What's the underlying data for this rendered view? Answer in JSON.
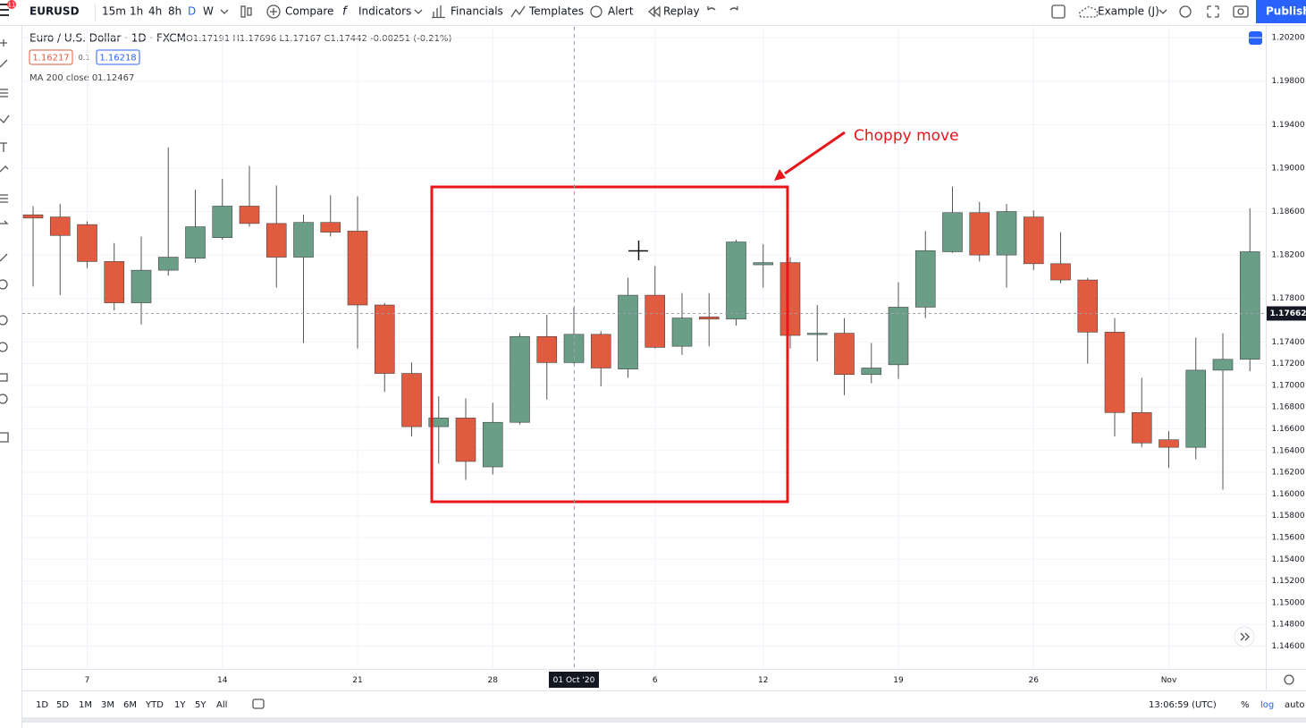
{
  "toolbar": {
    "symbol": "EURUSD",
    "badge": "11",
    "intervals": [
      "15m",
      "1h",
      "4h",
      "8h",
      "D",
      "W"
    ],
    "buttons": [
      "Compare",
      "Indicators",
      "Financials",
      "Templates",
      "Alert",
      "Replay"
    ],
    "layout": "Example (J)",
    "publish": "Publish"
  },
  "legend": {
    "title": "Euro / U.S. Dollar · 1D · FXCM",
    "ohlc": "O1.17191 H1.17696 L1.17167 C1.17442 -0.00251 (-0.21%)",
    "bid": "1.16217",
    "spread": "0.1",
    "ask": "1.16218",
    "indicator": "MA 200 close 0",
    "indicator_value": "1.12467"
  },
  "chart_data": {
    "type": "candlestick",
    "categories": [
      null,
      null,
      "7",
      null,
      null,
      null,
      null,
      "14",
      null,
      null,
      null,
      null,
      "21",
      null,
      null,
      null,
      null,
      "28",
      null,
      null,
      "01 Oct '20",
      null,
      null,
      "6",
      null,
      null,
      null,
      "12",
      null,
      null,
      null,
      null,
      "19",
      null,
      null,
      null,
      null,
      "26",
      null,
      null,
      null,
      null,
      "Nov",
      null,
      null,
      null
    ],
    "open": [
      1.1857,
      1.1855,
      1.1848,
      1.1814,
      1.1776,
      1.1806,
      1.1817,
      1.1836,
      1.1865,
      1.1849,
      1.1818,
      1.185,
      1.1842,
      1.1774,
      1.1711,
      1.1662,
      1.167,
      1.1625,
      1.1666,
      1.1745,
      1.1721,
      1.1747,
      1.1715,
      1.1783,
      1.1736,
      1.1763,
      1.1761,
      1.1811,
      1.1813,
      1.1747,
      1.1748,
      1.171,
      1.1719,
      1.1772,
      1.1823,
      1.1859,
      1.182,
      1.1855,
      1.1812,
      1.1797,
      1.1749,
      1.1675,
      1.165,
      1.1643,
      1.1714,
      1.1724
    ],
    "high": [
      1.1865,
      1.1867,
      1.1851,
      1.1831,
      1.1837,
      1.1919,
      1.188,
      1.189,
      1.1902,
      1.1884,
      1.1857,
      1.1875,
      1.1874,
      1.1776,
      1.1721,
      1.169,
      1.1688,
      1.1684,
      1.1748,
      1.1765,
      1.1772,
      1.175,
      1.1799,
      1.181,
      1.1785,
      1.1785,
      1.1834,
      1.183,
      1.1818,
      1.1774,
      1.1762,
      1.1739,
      1.1795,
      1.1842,
      1.1883,
      1.1869,
      1.1867,
      1.1861,
      1.1841,
      1.1799,
      1.1762,
      1.1707,
      1.1658,
      1.1744,
      1.1748,
      1.1863
    ],
    "low": [
      1.1791,
      1.1783,
      1.1808,
      1.1769,
      1.1756,
      1.1801,
      1.1813,
      1.1834,
      1.1846,
      1.179,
      1.1739,
      1.1837,
      1.1734,
      1.1694,
      1.1653,
      1.1628,
      1.1613,
      1.1618,
      1.1664,
      1.1687,
      1.172,
      1.1699,
      1.1707,
      1.1734,
      1.1728,
      1.1736,
      1.1755,
      1.179,
      1.1734,
      1.1722,
      1.1691,
      1.1702,
      1.1706,
      1.1762,
      1.1822,
      1.1814,
      1.179,
      1.1806,
      1.1794,
      1.172,
      1.1653,
      1.1643,
      1.1624,
      1.1632,
      1.1604,
      1.1713
    ],
    "close": [
      1.1854,
      1.1838,
      1.1814,
      1.1776,
      1.1806,
      1.1818,
      1.1846,
      1.1865,
      1.1849,
      1.1818,
      1.185,
      1.1841,
      1.1774,
      1.1711,
      1.1662,
      1.167,
      1.163,
      1.1666,
      1.1745,
      1.1721,
      1.1747,
      1.1716,
      1.1783,
      1.1735,
      1.1762,
      1.1761,
      1.1832,
      1.1813,
      1.1746,
      1.1748,
      1.171,
      1.1716,
      1.1772,
      1.1824,
      1.1859,
      1.182,
      1.186,
      1.1812,
      1.1797,
      1.1749,
      1.1675,
      1.1647,
      1.1643,
      1.1714,
      1.1724,
      1.1823
    ],
    "up_color": "#6a9e87",
    "down_color": "#e05b3f",
    "ylim": [
      1.1439,
      1.203
    ],
    "yticks": [
      {
        "value": 1.202,
        "label": "1.20200"
      },
      {
        "value": 1.198,
        "label": "1.19800"
      },
      {
        "value": 1.194,
        "label": "1.19400"
      },
      {
        "value": 1.19,
        "label": "1.19000"
      },
      {
        "value": 1.186,
        "label": "1.18600"
      },
      {
        "value": 1.182,
        "label": "1.18200"
      },
      {
        "value": 1.178,
        "label": "1.17800"
      },
      {
        "value": 1.174,
        "label": "1.17400"
      },
      {
        "value": 1.172,
        "label": "1.17200"
      },
      {
        "value": 1.17,
        "label": "1.17000"
      },
      {
        "value": 1.168,
        "label": "1.16800"
      },
      {
        "value": 1.166,
        "label": "1.16600"
      },
      {
        "value": 1.164,
        "label": "1.16400"
      },
      {
        "value": 1.162,
        "label": "1.16200"
      },
      {
        "value": 1.16,
        "label": "1.16000"
      },
      {
        "value": 1.158,
        "label": "1.15800"
      },
      {
        "value": 1.156,
        "label": "1.15600"
      },
      {
        "value": 1.154,
        "label": "1.15400"
      },
      {
        "value": 1.152,
        "label": "1.15200"
      },
      {
        "value": 1.15,
        "label": "1.15000"
      },
      {
        "value": 1.148,
        "label": "1.14800"
      },
      {
        "value": 1.146,
        "label": "1.14600"
      }
    ],
    "grid": true,
    "price_line": 1.17662,
    "annotation": "Choppy move"
  },
  "bottom_bar": {
    "ranges": [
      "1D",
      "5D",
      "1M",
      "3M",
      "6M",
      "YTD",
      "1Y",
      "5Y",
      "All"
    ],
    "clock": "13:06:59 (UTC)",
    "percent": "%",
    "log": "log",
    "auto": "auto"
  }
}
